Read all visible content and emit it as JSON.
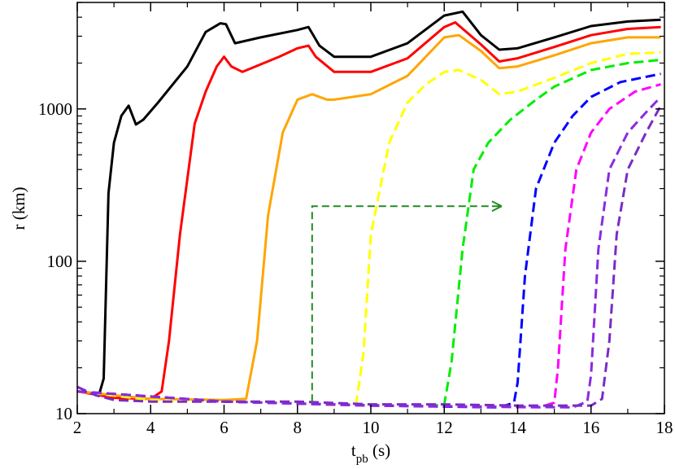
{
  "chart_data": {
    "type": "line",
    "xlabel": "t",
    "xlabel_sub": "pb",
    "xlabel_unit": " (s)",
    "ylabel": "r (km)",
    "x_scale": "linear",
    "y_scale": "log",
    "xlim": [
      2,
      18
    ],
    "ylim": [
      10,
      5000
    ],
    "x_ticks": [
      2,
      4,
      6,
      8,
      10,
      12,
      14,
      16,
      18
    ],
    "x_tick_labels": [
      "2",
      "4",
      "6",
      "8",
      "10",
      "12",
      "14",
      "16",
      "18"
    ],
    "y_ticks": [
      10,
      100,
      1000
    ],
    "y_tick_labels": [
      "10",
      "100",
      "1000"
    ],
    "grid": false,
    "legend": "none",
    "series": [
      {
        "color": "#000000",
        "style": "solid",
        "points": [
          [
            2,
            14
          ],
          [
            2.6,
            13.5
          ],
          [
            2.72,
            17
          ],
          [
            2.85,
            280
          ],
          [
            3.0,
            600
          ],
          [
            3.2,
            900
          ],
          [
            3.4,
            1050
          ],
          [
            3.6,
            790
          ],
          [
            3.8,
            850
          ],
          [
            4.2,
            1100
          ],
          [
            5.0,
            1900
          ],
          [
            5.5,
            3200
          ],
          [
            5.9,
            3650
          ],
          [
            6.05,
            3600
          ],
          [
            6.3,
            2700
          ],
          [
            7.0,
            2950
          ],
          [
            8.0,
            3300
          ],
          [
            8.3,
            3450
          ],
          [
            8.6,
            2600
          ],
          [
            9.0,
            2200
          ],
          [
            10.0,
            2200
          ],
          [
            11.0,
            2700
          ],
          [
            12.0,
            4100
          ],
          [
            12.5,
            4350
          ],
          [
            13.0,
            3050
          ],
          [
            13.5,
            2450
          ],
          [
            14.0,
            2500
          ],
          [
            15.0,
            2950
          ],
          [
            16.0,
            3500
          ],
          [
            17.0,
            3750
          ],
          [
            17.9,
            3850
          ]
        ]
      },
      {
        "color": "#ff0000",
        "style": "solid",
        "points": [
          [
            2,
            14
          ],
          [
            3.0,
            12.7
          ],
          [
            4.0,
            12.5
          ],
          [
            4.3,
            14
          ],
          [
            4.5,
            30
          ],
          [
            4.8,
            150
          ],
          [
            5.2,
            800
          ],
          [
            5.5,
            1300
          ],
          [
            5.8,
            1900
          ],
          [
            6.0,
            2200
          ],
          [
            6.2,
            1900
          ],
          [
            6.5,
            1750
          ],
          [
            7.5,
            2200
          ],
          [
            8.0,
            2500
          ],
          [
            8.3,
            2600
          ],
          [
            8.5,
            2200
          ],
          [
            9.0,
            1750
          ],
          [
            10.0,
            1750
          ],
          [
            11.0,
            2150
          ],
          [
            12.0,
            3450
          ],
          [
            12.3,
            3700
          ],
          [
            13.0,
            2650
          ],
          [
            13.5,
            2050
          ],
          [
            14.0,
            2150
          ],
          [
            15.0,
            2550
          ],
          [
            16.0,
            3050
          ],
          [
            17.0,
            3350
          ],
          [
            17.9,
            3450
          ]
        ]
      },
      {
        "color": "#ffa500",
        "style": "solid",
        "points": [
          [
            2,
            14
          ],
          [
            4.0,
            12.5
          ],
          [
            6.0,
            12.3
          ],
          [
            6.6,
            12.5
          ],
          [
            6.9,
            30
          ],
          [
            7.2,
            200
          ],
          [
            7.6,
            700
          ],
          [
            8.0,
            1150
          ],
          [
            8.4,
            1250
          ],
          [
            8.8,
            1150
          ],
          [
            9.0,
            1150
          ],
          [
            10.0,
            1250
          ],
          [
            11.0,
            1650
          ],
          [
            12.0,
            2950
          ],
          [
            12.4,
            3050
          ],
          [
            13.0,
            2400
          ],
          [
            13.5,
            1850
          ],
          [
            14.0,
            1900
          ],
          [
            15.0,
            2250
          ],
          [
            16.0,
            2700
          ],
          [
            17.0,
            2950
          ],
          [
            17.9,
            2950
          ]
        ]
      },
      {
        "color": "#ffff00",
        "style": "dashed",
        "points": [
          [
            2,
            14
          ],
          [
            4.0,
            12.3
          ],
          [
            6.0,
            12
          ],
          [
            7.5,
            11.8
          ],
          [
            9.0,
            11.4
          ],
          [
            9.6,
            11.6
          ],
          [
            9.8,
            25
          ],
          [
            10.0,
            150
          ],
          [
            10.5,
            600
          ],
          [
            11.0,
            1100
          ],
          [
            11.5,
            1450
          ],
          [
            12.0,
            1750
          ],
          [
            12.4,
            1800
          ],
          [
            13.0,
            1550
          ],
          [
            13.5,
            1250
          ],
          [
            14.0,
            1300
          ],
          [
            15.0,
            1600
          ],
          [
            16.0,
            2000
          ],
          [
            17.0,
            2300
          ],
          [
            17.9,
            2350
          ]
        ]
      },
      {
        "color": "#00ee00",
        "style": "dashed",
        "points": [
          [
            2,
            14
          ],
          [
            6.0,
            12
          ],
          [
            9.0,
            11.5
          ],
          [
            11.5,
            11.2
          ],
          [
            12.0,
            11.5
          ],
          [
            12.2,
            22
          ],
          [
            12.5,
            120
          ],
          [
            12.8,
            400
          ],
          [
            13.2,
            600
          ],
          [
            13.8,
            850
          ],
          [
            14.5,
            1150
          ],
          [
            15.0,
            1400
          ],
          [
            16.0,
            1800
          ],
          [
            17.0,
            2000
          ],
          [
            17.9,
            2100
          ]
        ]
      },
      {
        "color": "#0000ff",
        "style": "dashed",
        "points": [
          [
            2,
            14
          ],
          [
            6.0,
            12
          ],
          [
            10.0,
            11.3
          ],
          [
            13.5,
            11
          ],
          [
            13.9,
            11.8
          ],
          [
            14.0,
            16
          ],
          [
            14.2,
            80
          ],
          [
            14.5,
            300
          ],
          [
            15.0,
            600
          ],
          [
            15.5,
            900
          ],
          [
            16.0,
            1200
          ],
          [
            16.8,
            1500
          ],
          [
            17.9,
            1700
          ]
        ]
      },
      {
        "color": "#ff00ff",
        "style": "dashed",
        "points": [
          [
            2,
            14
          ],
          [
            6.0,
            12
          ],
          [
            10.0,
            11.3
          ],
          [
            14.6,
            11
          ],
          [
            15.0,
            11.8
          ],
          [
            15.1,
            20
          ],
          [
            15.3,
            120
          ],
          [
            15.6,
            400
          ],
          [
            16.0,
            700
          ],
          [
            16.5,
            1000
          ],
          [
            17.2,
            1300
          ],
          [
            17.9,
            1450
          ]
        ]
      },
      {
        "color": "#8a2be2",
        "style": "dashed",
        "points": [
          [
            2,
            14
          ],
          [
            6.0,
            12
          ],
          [
            10.0,
            11.3
          ],
          [
            15.5,
            11
          ],
          [
            15.9,
            12
          ],
          [
            16.0,
            18
          ],
          [
            16.2,
            120
          ],
          [
            16.5,
            400
          ],
          [
            17.0,
            700
          ],
          [
            17.5,
            950
          ],
          [
            17.9,
            1200
          ]
        ]
      },
      {
        "color": "#7b2cc4",
        "style": "dashed",
        "points": [
          [
            2,
            15
          ],
          [
            2.5,
            13.2
          ],
          [
            3.0,
            12.3
          ],
          [
            4.0,
            12
          ],
          [
            6.0,
            12
          ],
          [
            8.0,
            12
          ],
          [
            10.0,
            11.5
          ],
          [
            12.0,
            11.5
          ],
          [
            14.0,
            11.3
          ],
          [
            16.0,
            11.3
          ],
          [
            16.3,
            12.5
          ],
          [
            16.5,
            30
          ],
          [
            16.7,
            150
          ],
          [
            17.0,
            400
          ],
          [
            17.5,
            700
          ],
          [
            17.9,
            1050
          ]
        ]
      }
    ],
    "annotations": [
      {
        "type": "arrow",
        "color": "#228b22",
        "style": "dashed",
        "path": [
          [
            8.4,
            12
          ],
          [
            8.4,
            230
          ],
          [
            13.3,
            230
          ]
        ]
      }
    ]
  }
}
